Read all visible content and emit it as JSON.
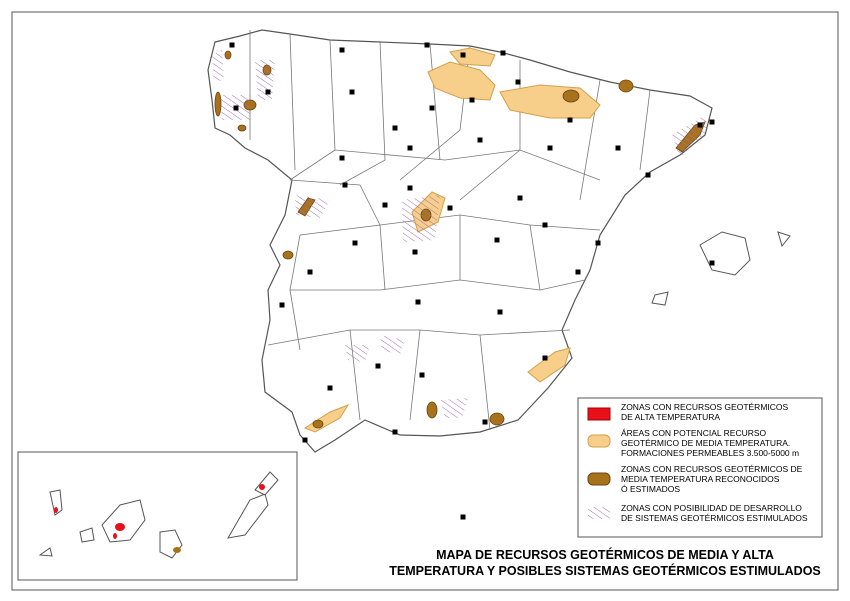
{
  "legend": {
    "items": [
      {
        "lines": [
          "ZONAS CON RECURSOS GEOTÉRMICOS",
          "DE ALTA TEMPERATURA"
        ]
      },
      {
        "lines": [
          "ÁREAS CON POTENCIAL RECURSO",
          "GEOTÉRMICO DE MEDIA TEMPERATURA.",
          "FORMACIONES PERMEABLES 3.500-5000 m"
        ]
      },
      {
        "lines": [
          "ZONAS CON RECURSOS GEOTÉRMICOS DE",
          "MEDIA TEMPERATURA RECONOCIDOS",
          "Ó ESTIMADOS"
        ]
      },
      {
        "lines": [
          "ZONAS CON POSIBILIDAD DE DESARROLLO",
          "DE SISTEMAS GEOTÉRMICOS ESTIMULADOS"
        ]
      }
    ]
  },
  "title": {
    "lines": [
      "MAPA DE RECURSOS GEOTÉRMICOS DE MEDIA Y ALTA",
      "TEMPERATURA Y POSIBLES SISTEMAS GEOTÉRMICOS ESTIMULADOS"
    ]
  }
}
